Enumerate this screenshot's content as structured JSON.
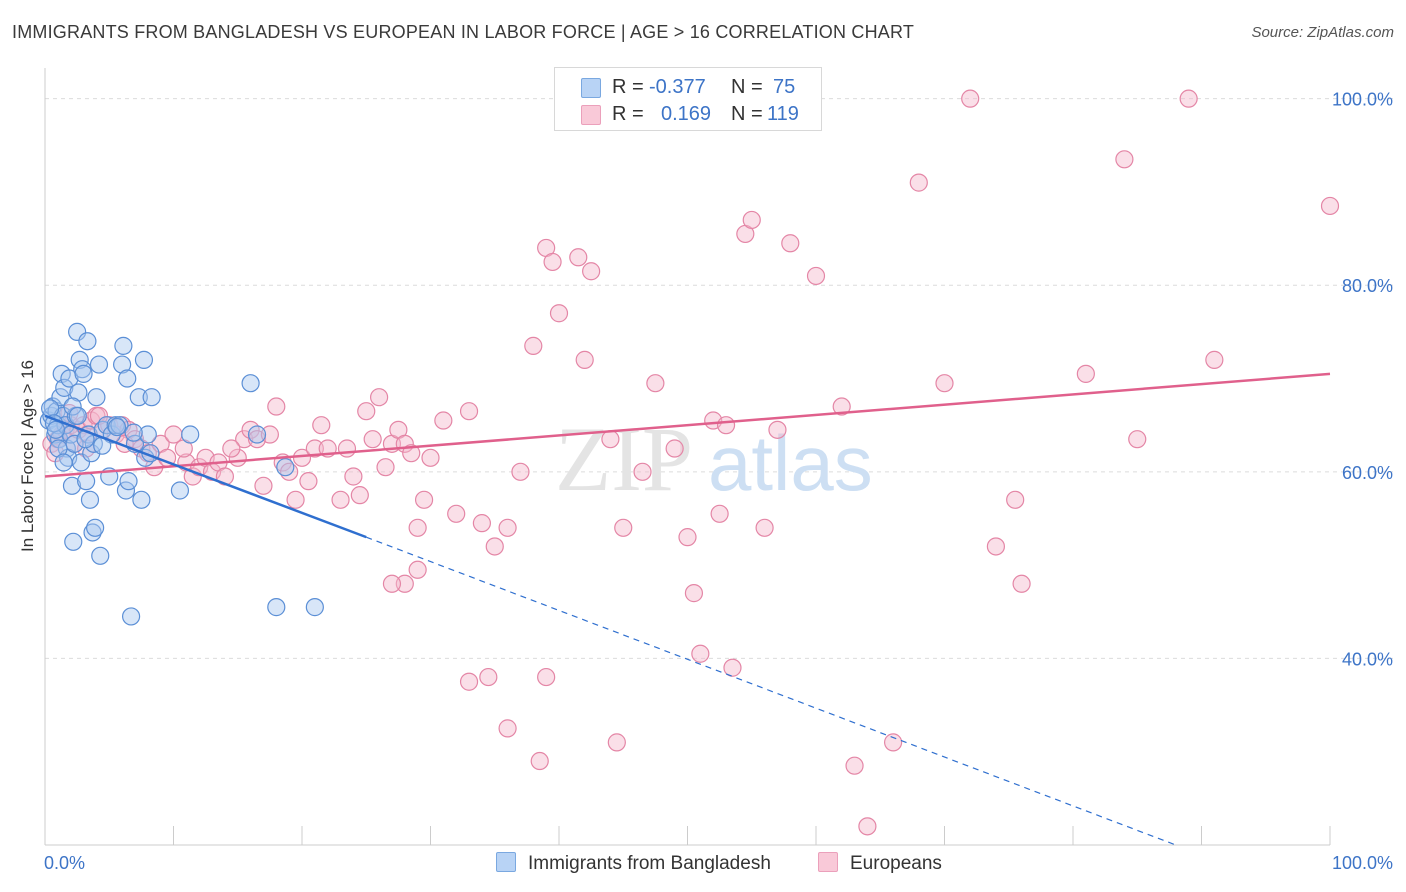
{
  "title": "IMMIGRANTS FROM BANGLADESH VS EUROPEAN IN LABOR FORCE | AGE > 16 CORRELATION CHART",
  "source": "Source: ZipAtlas.com",
  "watermark": {
    "zip": "ZIP",
    "atlas": "atlas"
  },
  "legend": {
    "r_label": "R =",
    "n_label": "N =",
    "series1": {
      "r": "-0.377",
      "n": "75"
    },
    "series2": {
      "r": "0.169",
      "n": "119"
    }
  },
  "bottom_legend": {
    "series1": "Immigrants from Bangladesh",
    "series2": "Europeans"
  },
  "colors": {
    "blue_fill": "#a8c8f0",
    "blue_stroke": "#5b8fd6",
    "blue_line": "#2f6fcf",
    "pink_fill": "#f5b8cc",
    "pink_stroke": "#e486a6",
    "pink_line": "#e0608c",
    "axis_label": "#3d74c7",
    "grid": "#dcdcdc"
  },
  "chart_data": {
    "type": "scatter",
    "title": "IMMIGRANTS FROM BANGLADESH VS EUROPEAN IN LABOR FORCE | AGE > 16 CORRELATION CHART",
    "xlabel": "",
    "ylabel": "In Labor Force | Age > 16",
    "x_tick_labels": [
      "0.0%",
      "100.0%"
    ],
    "y_tick_labels": [
      "40.0%",
      "60.0%",
      "80.0%",
      "100.0%"
    ],
    "xlim": [
      0,
      100
    ],
    "ylim": [
      20,
      102
    ],
    "grid": true,
    "legend_position": "top-center",
    "series": [
      {
        "name": "Immigrants from Bangladesh",
        "r": -0.377,
        "n": 75,
        "trend": {
          "x0": 0,
          "y0": 66.0,
          "x1": 25,
          "y1": 53.0,
          "dash_x1": 88,
          "dash_y1": 20.0
        },
        "points": [
          [
            0.3,
            65.5
          ],
          [
            0.5,
            66.0
          ],
          [
            0.6,
            67.0
          ],
          [
            0.8,
            64.0
          ],
          [
            0.9,
            66.5
          ],
          [
            1.0,
            65.0
          ],
          [
            1.1,
            63.5
          ],
          [
            1.2,
            68.0
          ],
          [
            1.3,
            70.5
          ],
          [
            1.4,
            66.0
          ],
          [
            1.5,
            69.0
          ],
          [
            1.6,
            65.0
          ],
          [
            1.7,
            62.5
          ],
          [
            1.8,
            61.5
          ],
          [
            1.9,
            70.0
          ],
          [
            2.0,
            64.0
          ],
          [
            2.1,
            58.5
          ],
          [
            2.2,
            52.5
          ],
          [
            2.3,
            63.0
          ],
          [
            2.4,
            66.0
          ],
          [
            2.5,
            75.0
          ],
          [
            2.6,
            68.5
          ],
          [
            2.7,
            72.0
          ],
          [
            2.8,
            61.0
          ],
          [
            2.9,
            71.0
          ],
          [
            3.0,
            70.5
          ],
          [
            3.2,
            59.0
          ],
          [
            3.3,
            74.0
          ],
          [
            3.4,
            64.0
          ],
          [
            3.5,
            57.0
          ],
          [
            3.6,
            62.0
          ],
          [
            3.7,
            53.5
          ],
          [
            3.8,
            63.0
          ],
          [
            3.9,
            54.0
          ],
          [
            4.0,
            68.0
          ],
          [
            4.2,
            71.5
          ],
          [
            4.3,
            51.0
          ],
          [
            4.5,
            64.5
          ],
          [
            4.8,
            65.0
          ],
          [
            5.0,
            59.5
          ],
          [
            5.2,
            64.0
          ],
          [
            5.5,
            65.0
          ],
          [
            5.8,
            65.0
          ],
          [
            6.0,
            71.5
          ],
          [
            6.1,
            73.5
          ],
          [
            6.3,
            58.0
          ],
          [
            6.4,
            70.0
          ],
          [
            6.5,
            59.0
          ],
          [
            6.7,
            44.5
          ],
          [
            7.0,
            63.0
          ],
          [
            7.3,
            68.0
          ],
          [
            7.5,
            57.0
          ],
          [
            7.7,
            72.0
          ],
          [
            7.8,
            61.5
          ],
          [
            8.0,
            64.0
          ],
          [
            8.2,
            62.0
          ],
          [
            8.3,
            68.0
          ],
          [
            10.5,
            58.0
          ],
          [
            11.3,
            64.0
          ],
          [
            16.0,
            69.5
          ],
          [
            16.5,
            64.0
          ],
          [
            18.0,
            45.5
          ],
          [
            18.7,
            60.5
          ],
          [
            21.0,
            45.5
          ],
          [
            0.4,
            66.8
          ],
          [
            0.7,
            65.2
          ],
          [
            1.05,
            62.5
          ],
          [
            2.15,
            67.0
          ],
          [
            2.55,
            66.0
          ],
          [
            5.6,
            64.8
          ],
          [
            6.9,
            64.2
          ],
          [
            3.15,
            63.5
          ],
          [
            1.45,
            61.0
          ],
          [
            4.45,
            62.8
          ],
          [
            0.85,
            64.5
          ]
        ]
      },
      {
        "name": "Europeans",
        "r": 0.169,
        "n": 119,
        "trend": {
          "x0": 0,
          "y0": 59.5,
          "x1": 100,
          "y1": 70.5
        },
        "points": [
          [
            0.5,
            63.0
          ],
          [
            0.8,
            62.0
          ],
          [
            1.0,
            63.5
          ],
          [
            1.3,
            64.0
          ],
          [
            1.6,
            64.5
          ],
          [
            2.0,
            65.0
          ],
          [
            2.3,
            63.0
          ],
          [
            2.6,
            64.5
          ],
          [
            3.0,
            65.0
          ],
          [
            3.3,
            64.0
          ],
          [
            3.6,
            65.5
          ],
          [
            4.0,
            66.0
          ],
          [
            4.5,
            64.5
          ],
          [
            5.0,
            65.0
          ],
          [
            5.5,
            64.0
          ],
          [
            6.0,
            65.0
          ],
          [
            6.5,
            64.5
          ],
          [
            7.0,
            63.5
          ],
          [
            7.5,
            62.5
          ],
          [
            8.0,
            62.0
          ],
          [
            8.5,
            60.5
          ],
          [
            9.0,
            63.0
          ],
          [
            9.5,
            61.5
          ],
          [
            10.0,
            64.0
          ],
          [
            11.0,
            61.0
          ],
          [
            11.5,
            59.5
          ],
          [
            12.0,
            60.5
          ],
          [
            12.5,
            61.5
          ],
          [
            13.0,
            60.0
          ],
          [
            13.5,
            61.0
          ],
          [
            14.0,
            59.5
          ],
          [
            15.0,
            61.5
          ],
          [
            15.5,
            63.5
          ],
          [
            16.0,
            64.5
          ],
          [
            16.5,
            63.5
          ],
          [
            17.0,
            58.5
          ],
          [
            17.5,
            64.0
          ],
          [
            18.0,
            67.0
          ],
          [
            18.5,
            61.0
          ],
          [
            19.0,
            60.0
          ],
          [
            19.5,
            57.0
          ],
          [
            20.0,
            61.5
          ],
          [
            20.5,
            59.0
          ],
          [
            21.0,
            62.5
          ],
          [
            21.5,
            65.0
          ],
          [
            22.0,
            62.5
          ],
          [
            23.0,
            57.0
          ],
          [
            23.5,
            62.5
          ],
          [
            24.5,
            57.5
          ],
          [
            25.0,
            66.5
          ],
          [
            25.5,
            63.5
          ],
          [
            26.0,
            68.0
          ],
          [
            27.0,
            63.0
          ],
          [
            27.5,
            64.5
          ],
          [
            28.0,
            63.0
          ],
          [
            28.5,
            62.0
          ],
          [
            29.0,
            54.0
          ],
          [
            29.5,
            57.0
          ],
          [
            30.0,
            61.5
          ],
          [
            31.0,
            65.5
          ],
          [
            32.0,
            55.5
          ],
          [
            33.0,
            66.5
          ],
          [
            34.0,
            54.5
          ],
          [
            35.0,
            52.0
          ],
          [
            36.0,
            54.0
          ],
          [
            37.0,
            60.0
          ],
          [
            38.0,
            73.5
          ],
          [
            39.0,
            84.0
          ],
          [
            39.5,
            82.5
          ],
          [
            40.0,
            77.0
          ],
          [
            41.5,
            83.0
          ],
          [
            42.0,
            72.0
          ],
          [
            42.5,
            81.5
          ],
          [
            44.0,
            63.5
          ],
          [
            45.0,
            54.0
          ],
          [
            46.5,
            60.0
          ],
          [
            47.5,
            69.5
          ],
          [
            49.0,
            62.5
          ],
          [
            50.0,
            53.0
          ],
          [
            50.5,
            47.0
          ],
          [
            51.0,
            40.5
          ],
          [
            52.0,
            65.5
          ],
          [
            52.5,
            55.5
          ],
          [
            53.0,
            65.0
          ],
          [
            53.5,
            39.0
          ],
          [
            54.5,
            85.5
          ],
          [
            55.0,
            87.0
          ],
          [
            56.0,
            54.0
          ],
          [
            57.0,
            64.5
          ],
          [
            58.0,
            84.5
          ],
          [
            60.0,
            81.0
          ],
          [
            62.0,
            67.0
          ],
          [
            63.0,
            28.5
          ],
          [
            64.0,
            22.0
          ],
          [
            66.0,
            31.0
          ],
          [
            68.0,
            91.0
          ],
          [
            70.0,
            69.5
          ],
          [
            72.0,
            100.0
          ],
          [
            74.0,
            52.0
          ],
          [
            75.5,
            57.0
          ],
          [
            76.0,
            48.0
          ],
          [
            81.0,
            70.5
          ],
          [
            84.0,
            93.5
          ],
          [
            85.0,
            63.5
          ],
          [
            89.0,
            100.0
          ],
          [
            91.0,
            72.0
          ],
          [
            100.0,
            88.5
          ],
          [
            39.0,
            38.0
          ],
          [
            34.5,
            38.0
          ],
          [
            28.0,
            48.0
          ],
          [
            29.0,
            49.5
          ],
          [
            27.0,
            48.0
          ],
          [
            36.0,
            32.5
          ],
          [
            38.5,
            29.0
          ],
          [
            44.5,
            31.0
          ],
          [
            33.0,
            37.5
          ],
          [
            4.2,
            66.0
          ],
          [
            3.2,
            62.5
          ],
          [
            1.9,
            66.3
          ],
          [
            6.2,
            63.0
          ],
          [
            10.8,
            62.5
          ],
          [
            24.0,
            59.5
          ],
          [
            26.5,
            60.5
          ],
          [
            14.5,
            62.5
          ]
        ]
      }
    ]
  }
}
